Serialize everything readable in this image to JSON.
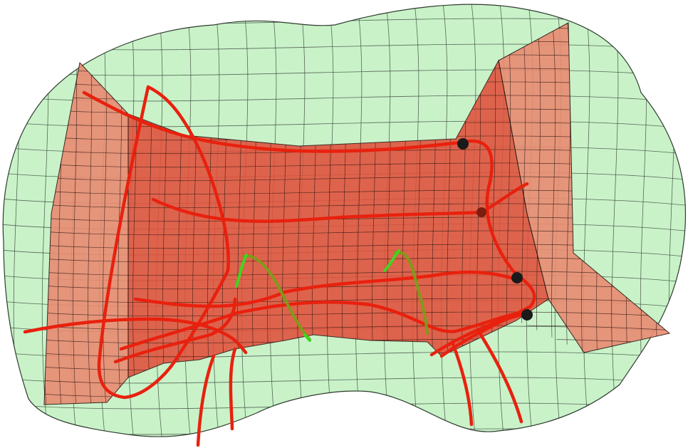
{
  "scene": {
    "colors": {
      "background": "#ffffff",
      "outer_fill": "#c9f2c9",
      "outer_line": "#2f3b2f",
      "inner_fill": "#e2503b",
      "inner_fill_light": "#e98b72",
      "inner_line": "#2a1410",
      "curve_red": "#e8210e",
      "curve_green": "#3fd61f",
      "curve_olive": "#7f9a1a",
      "marker": "#1a1a1a"
    }
  }
}
